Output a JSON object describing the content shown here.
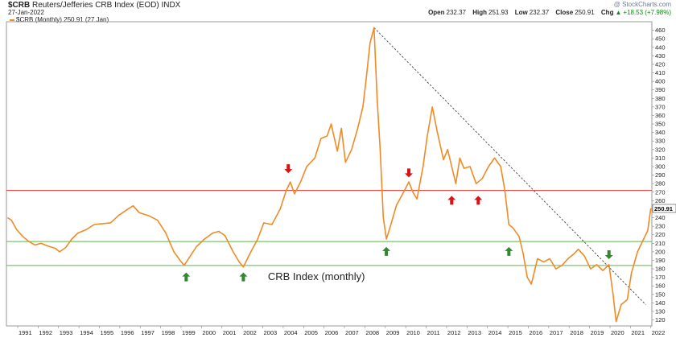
{
  "header": {
    "symbol": "$CRB",
    "name": "Reuters/Jefferies CRB Index (EOD)",
    "exchange": "INDX",
    "date": "27-Jan-2022",
    "watermark": "@ StockCharts.com",
    "open_label": "Open",
    "open": "232.37",
    "high_label": "High",
    "high": "251.93",
    "low_label": "Low",
    "low": "232.37",
    "close_label": "Close",
    "close": "250.91",
    "chg_label": "Chg",
    "chg": "+18.53 (+7.98%)",
    "up_arrow": "▲"
  },
  "legend": {
    "label": "$CRB (Monthly) 250.91 (27 Jan)"
  },
  "chart_data": {
    "type": "line",
    "annotation": "CRB Index (monthly)",
    "last_value_label": "250.91",
    "x_labels": [
      "1991",
      "1992",
      "1993",
      "1994",
      "1995",
      "1996",
      "1997",
      "1998",
      "1999",
      "2000",
      "2001",
      "2002",
      "2003",
      "2004",
      "2005",
      "2006",
      "2007",
      "2008",
      "2009",
      "2010",
      "2011",
      "2012",
      "2013",
      "2014",
      "2015",
      "2016",
      "2017",
      "2018",
      "2019",
      "2020",
      "2021",
      "2022"
    ],
    "y_ticks": [
      120,
      130,
      140,
      150,
      160,
      170,
      180,
      190,
      200,
      210,
      220,
      230,
      240,
      250,
      260,
      270,
      280,
      290,
      300,
      310,
      320,
      330,
      340,
      350,
      360,
      370,
      380,
      390,
      400,
      410,
      420,
      430,
      440,
      450,
      460
    ],
    "ylim": [
      113,
      470
    ],
    "xlim": [
      1990.5,
      2022.1
    ],
    "series": [
      {
        "color": "#f08a24",
        "points": [
          [
            1990.55,
            240
          ],
          [
            1990.75,
            237
          ],
          [
            1991.0,
            226
          ],
          [
            1991.3,
            218
          ],
          [
            1991.6,
            212
          ],
          [
            1991.9,
            208
          ],
          [
            1992.2,
            210
          ],
          [
            1992.5,
            207
          ],
          [
            1992.9,
            204
          ],
          [
            1993.1,
            200
          ],
          [
            1993.4,
            205
          ],
          [
            1993.7,
            215
          ],
          [
            1994.0,
            222
          ],
          [
            1994.4,
            226
          ],
          [
            1994.8,
            232
          ],
          [
            1995.2,
            233
          ],
          [
            1995.6,
            234
          ],
          [
            1996.0,
            243
          ],
          [
            1996.5,
            251
          ],
          [
            1996.7,
            254
          ],
          [
            1997.0,
            246
          ],
          [
            1997.5,
            242
          ],
          [
            1997.9,
            237
          ],
          [
            1998.3,
            222
          ],
          [
            1998.7,
            200
          ],
          [
            1999.0,
            190
          ],
          [
            1999.2,
            184
          ],
          [
            1999.5,
            195
          ],
          [
            1999.8,
            206
          ],
          [
            2000.2,
            215
          ],
          [
            2000.6,
            222
          ],
          [
            2000.9,
            224
          ],
          [
            2001.2,
            219
          ],
          [
            2001.6,
            200
          ],
          [
            2001.9,
            188
          ],
          [
            2002.1,
            182
          ],
          [
            2002.4,
            197
          ],
          [
            2002.8,
            215
          ],
          [
            2003.1,
            234
          ],
          [
            2003.5,
            232
          ],
          [
            2003.9,
            250
          ],
          [
            2004.2,
            272
          ],
          [
            2004.4,
            282
          ],
          [
            2004.6,
            268
          ],
          [
            2004.9,
            282
          ],
          [
            2005.2,
            300
          ],
          [
            2005.6,
            310
          ],
          [
            2005.9,
            333
          ],
          [
            2006.2,
            336
          ],
          [
            2006.4,
            350
          ],
          [
            2006.7,
            318
          ],
          [
            2006.9,
            345
          ],
          [
            2007.1,
            305
          ],
          [
            2007.4,
            320
          ],
          [
            2007.7,
            345
          ],
          [
            2007.95,
            370
          ],
          [
            2008.1,
            400
          ],
          [
            2008.3,
            445
          ],
          [
            2008.5,
            463
          ],
          [
            2008.65,
            380
          ],
          [
            2008.8,
            320
          ],
          [
            2008.95,
            240
          ],
          [
            2009.1,
            215
          ],
          [
            2009.3,
            230
          ],
          [
            2009.6,
            255
          ],
          [
            2009.9,
            268
          ],
          [
            2010.2,
            282
          ],
          [
            2010.4,
            270
          ],
          [
            2010.6,
            262
          ],
          [
            2010.9,
            300
          ],
          [
            2011.1,
            335
          ],
          [
            2011.35,
            370
          ],
          [
            2011.6,
            340
          ],
          [
            2011.9,
            308
          ],
          [
            2012.1,
            320
          ],
          [
            2012.3,
            300
          ],
          [
            2012.5,
            280
          ],
          [
            2012.7,
            310
          ],
          [
            2012.9,
            298
          ],
          [
            2013.2,
            300
          ],
          [
            2013.5,
            280
          ],
          [
            2013.8,
            286
          ],
          [
            2014.1,
            300
          ],
          [
            2014.4,
            310
          ],
          [
            2014.7,
            300
          ],
          [
            2014.9,
            272
          ],
          [
            2015.1,
            232
          ],
          [
            2015.3,
            228
          ],
          [
            2015.6,
            218
          ],
          [
            2015.8,
            198
          ],
          [
            2016.0,
            170
          ],
          [
            2016.2,
            162
          ],
          [
            2016.5,
            192
          ],
          [
            2016.8,
            188
          ],
          [
            2017.1,
            192
          ],
          [
            2017.4,
            180
          ],
          [
            2017.7,
            184
          ],
          [
            2018.0,
            192
          ],
          [
            2018.3,
            198
          ],
          [
            2018.5,
            203
          ],
          [
            2018.8,
            195
          ],
          [
            2019.1,
            180
          ],
          [
            2019.4,
            185
          ],
          [
            2019.7,
            178
          ],
          [
            2020.0,
            185
          ],
          [
            2020.2,
            150
          ],
          [
            2020.35,
            118
          ],
          [
            2020.6,
            138
          ],
          [
            2020.9,
            144
          ],
          [
            2021.1,
            175
          ],
          [
            2021.4,
            200
          ],
          [
            2021.7,
            215
          ],
          [
            2021.9,
            225
          ],
          [
            2022.05,
            251
          ]
        ]
      }
    ],
    "support_lines": [
      {
        "y": 272,
        "color": "#e03030"
      },
      {
        "y": 212,
        "color": "#5ab84a"
      },
      {
        "y": 184,
        "color": "#5ab84a"
      }
    ],
    "trendline": {
      "from": [
        2008.5,
        463
      ],
      "to": [
        2021.8,
        138
      ],
      "style": "dashed"
    },
    "markers": [
      {
        "x": 1999.3,
        "y": 170,
        "dir": "up",
        "color": "#2f8a2f"
      },
      {
        "x": 2002.1,
        "y": 170,
        "dir": "up",
        "color": "#2f8a2f"
      },
      {
        "x": 2009.1,
        "y": 200,
        "dir": "up",
        "color": "#2f8a2f"
      },
      {
        "x": 2015.1,
        "y": 200,
        "dir": "up",
        "color": "#2f8a2f"
      },
      {
        "x": 2020.0,
        "y": 197,
        "dir": "down",
        "color": "#2f8a2f"
      },
      {
        "x": 2004.3,
        "y": 298,
        "dir": "down",
        "color": "#dd1111"
      },
      {
        "x": 2010.2,
        "y": 293,
        "dir": "down",
        "color": "#dd1111"
      },
      {
        "x": 2012.3,
        "y": 260,
        "dir": "up",
        "color": "#dd1111"
      },
      {
        "x": 2013.6,
        "y": 260,
        "dir": "up",
        "color": "#dd1111"
      }
    ]
  }
}
